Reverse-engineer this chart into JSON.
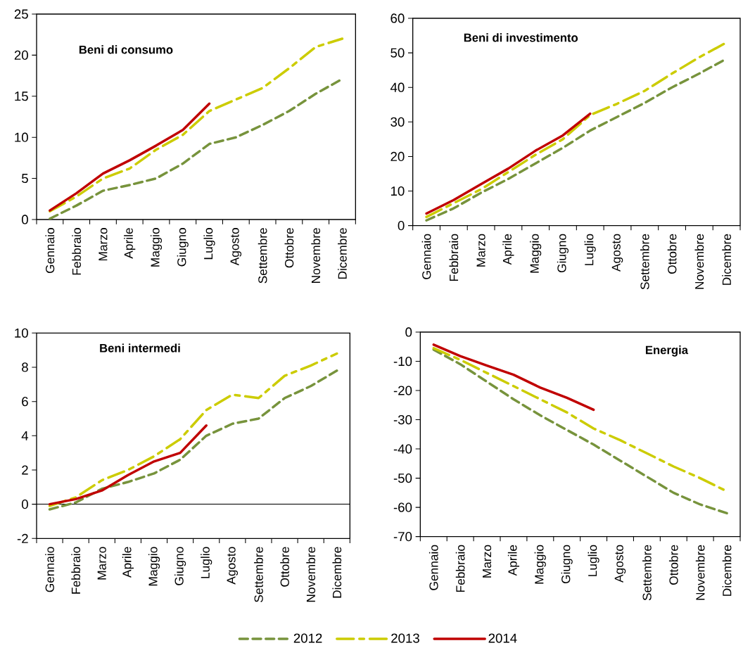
{
  "chart_data": [
    {
      "type": "line",
      "title": "Beni di consumo",
      "categories": [
        "Gennaio",
        "Febbraio",
        "Marzo",
        "Aprile",
        "Maggio",
        "Giugno",
        "Luglio",
        "Agosto",
        "Settembre",
        "Ottobre",
        "Novembre",
        "Dicembre"
      ],
      "ylim": [
        0,
        25
      ],
      "yticks": [
        0,
        5,
        10,
        15,
        20,
        25
      ],
      "grid": false,
      "legend": false,
      "series": [
        {
          "color": "#77933c",
          "line_style": "dashed",
          "values": [
            0.1,
            1.7,
            3.5,
            4.2,
            5.0,
            6.8,
            9.2,
            10.0,
            11.5,
            13.2,
            15.3,
            17.1
          ]
        },
        {
          "color": "#cccc00",
          "line_style": "dashed",
          "values": [
            1.0,
            2.8,
            5.0,
            6.2,
            8.5,
            10.3,
            13.2,
            14.6,
            16.0,
            18.4,
            21.0,
            22.0
          ]
        },
        {
          "color": "#c00000",
          "line_style": "solid",
          "values": [
            1.1,
            3.2,
            5.6,
            7.2,
            9.0,
            10.9,
            14.1,
            null,
            null,
            null,
            null,
            null
          ]
        }
      ]
    },
    {
      "type": "line",
      "title": "Beni di investimento",
      "categories": [
        "Gennaio",
        "Febbraio",
        "Marzo",
        "Aprile",
        "Maggio",
        "Giugno",
        "Luglio",
        "Agosto",
        "Settembre",
        "Ottobre",
        "Novembre",
        "Dicembre"
      ],
      "ylim": [
        0,
        60
      ],
      "yticks": [
        0,
        10,
        20,
        30,
        40,
        50,
        60
      ],
      "grid": false,
      "legend": false,
      "series": [
        {
          "color": "#77933c",
          "line_style": "dashed",
          "values": [
            1.5,
            5,
            9.5,
            13.5,
            18,
            22.5,
            27.5,
            31.5,
            35.5,
            40,
            44,
            48.3
          ]
        },
        {
          "color": "#cccc00",
          "line_style": "dashed",
          "values": [
            2.5,
            6.5,
            10.5,
            15.5,
            20.5,
            25,
            32,
            35.3,
            39,
            44,
            48.7,
            53
          ]
        },
        {
          "color": "#c00000",
          "line_style": "solid",
          "values": [
            3.5,
            7.4,
            12,
            16.5,
            21.7,
            26.1,
            32.4,
            null,
            null,
            null,
            null,
            null
          ]
        }
      ]
    },
    {
      "type": "line",
      "title": "Beni intermedi",
      "categories": [
        "Gennaio",
        "Febbraio",
        "Marzo",
        "Aprile",
        "Maggio",
        "Giugno",
        "Luglio",
        "Agosto",
        "Settembre",
        "Ottobre",
        "Novembre",
        "Dicembre"
      ],
      "ylim": [
        -2,
        10
      ],
      "yticks": [
        -2,
        0,
        2,
        4,
        6,
        8,
        10
      ],
      "grid": false,
      "legend": false,
      "ref_lines": [
        {
          "axis": "y",
          "value": 0,
          "color": "#000000"
        }
      ],
      "series": [
        {
          "color": "#77933c",
          "line_style": "dashed",
          "values": [
            -0.3,
            0.1,
            0.9,
            1.3,
            1.8,
            2.6,
            4.0,
            4.7,
            5.0,
            6.2,
            6.9,
            7.8
          ]
        },
        {
          "color": "#cccc00",
          "line_style": "dashed",
          "values": [
            -0.1,
            0.4,
            1.4,
            2.0,
            2.8,
            3.8,
            5.5,
            6.4,
            6.2,
            7.5,
            8.1,
            8.8
          ]
        },
        {
          "color": "#c00000",
          "line_style": "solid",
          "values": [
            0.0,
            0.3,
            0.8,
            1.7,
            2.5,
            3.0,
            4.6,
            null,
            null,
            null,
            null,
            null
          ]
        }
      ]
    },
    {
      "type": "line",
      "title": "Energia",
      "categories": [
        "Gennaio",
        "Febbraio",
        "Marzo",
        "Aprile",
        "Maggio",
        "Giugno",
        "Luglio",
        "Agosto",
        "Settembre",
        "Ottobre",
        "Novembre",
        "Dicembre"
      ],
      "ylim": [
        -70,
        0
      ],
      "yticks": [
        -70,
        -60,
        -50,
        -40,
        -30,
        -20,
        -10,
        0
      ],
      "grid": false,
      "legend": "bottom",
      "series": [
        {
          "name": "2012",
          "color": "#77933c",
          "line_style": "dashed",
          "values": [
            -6,
            -11,
            -17,
            -23,
            -28.5,
            -33.5,
            -38.5,
            -44,
            -49.5,
            -55,
            -59,
            -62
          ]
        },
        {
          "name": "2013",
          "color": "#cccc00",
          "line_style": "dashed",
          "values": [
            -5.5,
            -9.5,
            -14,
            -18.5,
            -23,
            -27.5,
            -33,
            -37,
            -41.5,
            -46,
            -50,
            -54.5
          ]
        },
        {
          "name": "2014",
          "color": "#c00000",
          "line_style": "solid",
          "values": [
            -4.3,
            -8.2,
            -11.5,
            -14.6,
            -19,
            -22.5,
            -26.6,
            null,
            null,
            null,
            null,
            null
          ]
        }
      ]
    }
  ]
}
